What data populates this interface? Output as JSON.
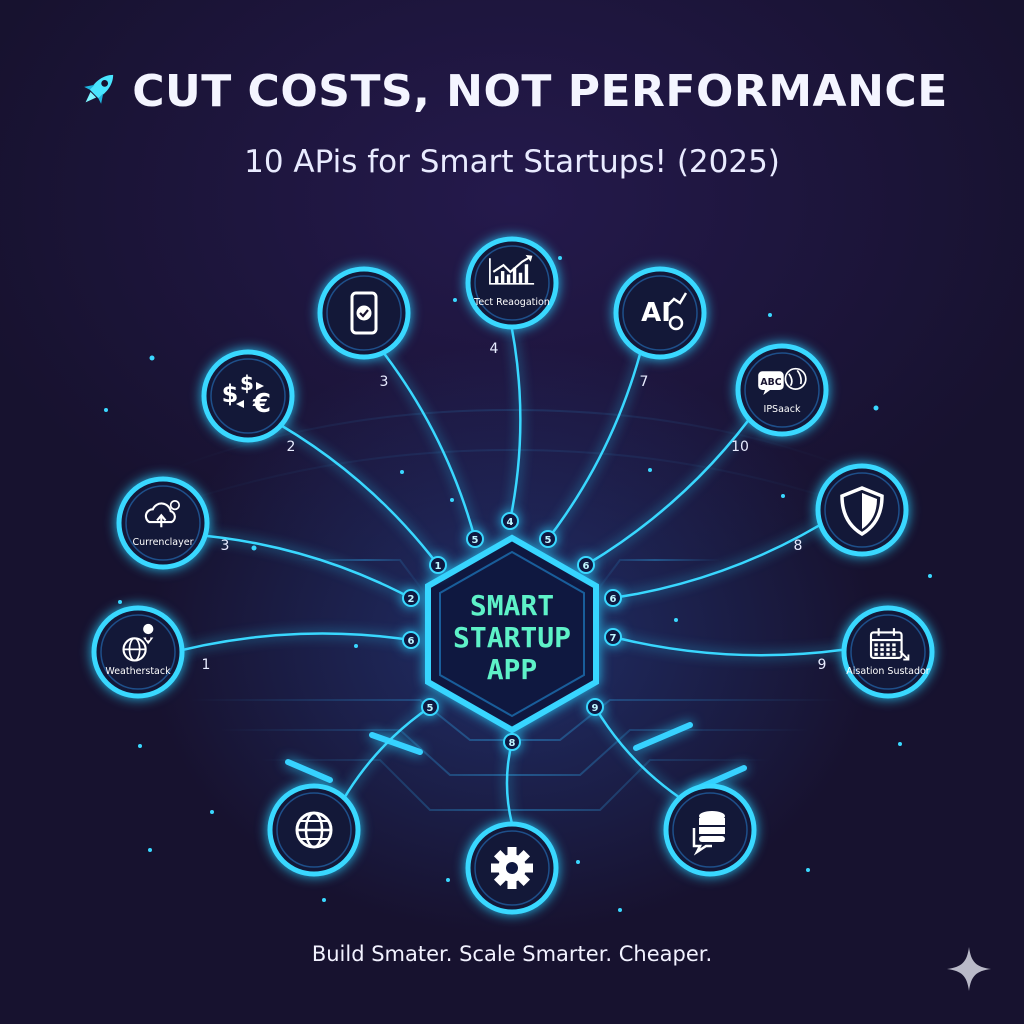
{
  "header": {
    "title": "CUT COSTS, NOT PERFORMANCE",
    "subtitle": "10 APis for Smart Startups! (2025)"
  },
  "hub": {
    "lines": [
      "SMART",
      "STARTUP",
      "APP"
    ],
    "color": "#5ef2c8"
  },
  "nodes": [
    {
      "id": "weather",
      "icon": "globe-pin-icon",
      "label": "Weatherstack",
      "number": "1",
      "port": "6"
    },
    {
      "id": "currency-layer",
      "icon": "cloud-upload-icon",
      "label": "Currenclayer",
      "number": "3",
      "port": "2"
    },
    {
      "id": "currency",
      "icon": "currency-exchange-icon",
      "label": "",
      "number": "2",
      "port": "1"
    },
    {
      "id": "phone",
      "icon": "phone-check-icon",
      "label": "",
      "number": "3",
      "port": "5"
    },
    {
      "id": "text-recognition",
      "icon": "chart-growth-icon",
      "label": "Tect Reaogation",
      "number": "4",
      "port": "4"
    },
    {
      "id": "ai",
      "icon": "ai-gear-icon",
      "label": "",
      "number": "7",
      "port": "5"
    },
    {
      "id": "ipstack",
      "icon": "abc-map-icon",
      "label": "IPSaack",
      "number": "10",
      "port": "6"
    },
    {
      "id": "security",
      "icon": "shield-icon",
      "label": "",
      "number": "8",
      "port": "6"
    },
    {
      "id": "scheduler",
      "icon": "calendar-icon",
      "label": "Aisation Sustador",
      "number": "9",
      "port": "7"
    },
    {
      "id": "web",
      "icon": "globe-icon",
      "label": "",
      "number": "",
      "port": "5"
    },
    {
      "id": "settings",
      "icon": "gear-icon",
      "label": "",
      "number": "",
      "port": "8"
    },
    {
      "id": "database",
      "icon": "database-chat-icon",
      "label": "",
      "number": "",
      "port": "9"
    }
  ],
  "footer": {
    "tagline": "Build Smater. Scale Smarter. Cheaper."
  },
  "colors": {
    "background": "#17122f",
    "neon": "#39d8ff",
    "hub_text": "#5ef2c8",
    "title": "#f4f5ff"
  }
}
